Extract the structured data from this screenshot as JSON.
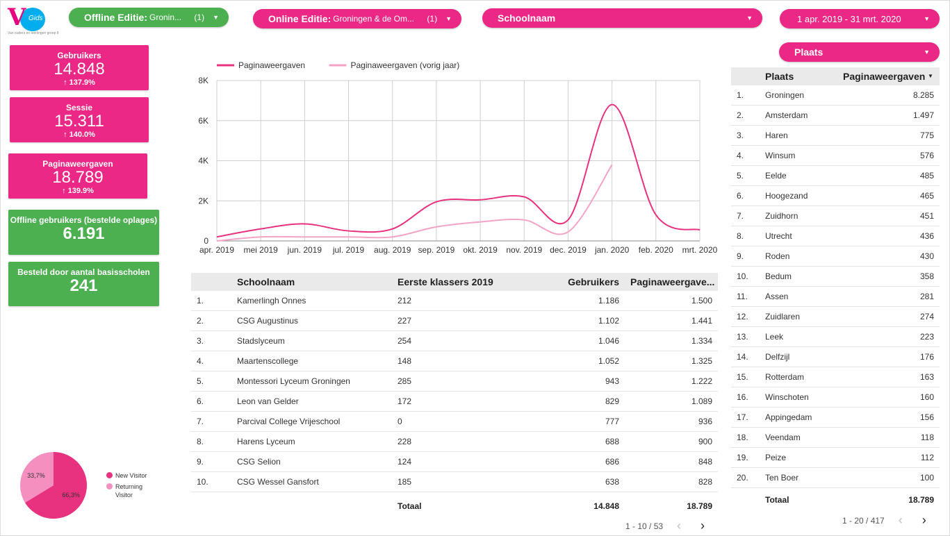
{
  "logo": {
    "letter": "V",
    "word": "Gids",
    "tagline": "Van ouders en leerlingen groep 8"
  },
  "filters": {
    "offline": {
      "label": "Offline Editie:",
      "value": "Gronin...",
      "count": "(1)"
    },
    "online": {
      "label": "Online Editie:",
      "value": "Groningen & de Om...",
      "count": "(1)"
    },
    "school": {
      "label": "Schoolnaam"
    },
    "date": {
      "label": "1 apr. 2019 - 31 mrt. 2020"
    },
    "plaats": {
      "label": "Plaats"
    }
  },
  "kpis": {
    "users": {
      "title": "Gebruikers",
      "value": "14.848",
      "change": "↑ 137.9%"
    },
    "sessions": {
      "title": "Sessie",
      "value": "15.311",
      "change": "↑ 140.0%"
    },
    "pageviews": {
      "title": "Paginaweergaven",
      "value": "18.789",
      "change": "↑ 139.9%"
    },
    "offline_users": {
      "title": "Offline gebruikers (bestelde oplages)",
      "value": "6.191"
    },
    "schools": {
      "title": "Besteld door aantal basisscholen",
      "value": "241"
    }
  },
  "chart_data": {
    "type": "line",
    "categories": [
      "apr. 2019",
      "mei 2019",
      "jun. 2019",
      "jul. 2019",
      "aug. 2019",
      "sep. 2019",
      "okt. 2019",
      "nov. 2019",
      "dec. 2019",
      "jan. 2020",
      "feb. 2020",
      "mrt. 2020"
    ],
    "series": [
      {
        "name": "Paginaweergaven",
        "color": "#e8317f",
        "values": [
          200,
          600,
          850,
          500,
          600,
          1950,
          2050,
          2200,
          1050,
          6800,
          1300,
          550
        ]
      },
      {
        "name": "Paginaweergaven (vorig jaar)",
        "color": "#f4a3c6",
        "values": [
          0,
          200,
          200,
          200,
          200,
          700,
          950,
          1050,
          450,
          3800,
          null,
          null
        ]
      }
    ],
    "yticks": [
      "0",
      "2K",
      "4K",
      "6K",
      "8K"
    ],
    "ylim": [
      0,
      8000
    ],
    "grid": true,
    "legend": "top-left"
  },
  "schools_table": {
    "headers": [
      "Schoolnaam",
      "Eerste klassers 2019",
      "Gebruikers",
      "Paginaweergave..."
    ],
    "rows": [
      [
        "1.",
        "Kamerlingh Onnes",
        "212",
        "1.186",
        "1.500"
      ],
      [
        "2.",
        "CSG Augustinus",
        "227",
        "1.102",
        "1.441"
      ],
      [
        "3.",
        "Stadslyceum",
        "254",
        "1.046",
        "1.334"
      ],
      [
        "4.",
        "Maartenscollege",
        "148",
        "1.052",
        "1.325"
      ],
      [
        "5.",
        "Montessori Lyceum Groningen",
        "285",
        "943",
        "1.222"
      ],
      [
        "6.",
        "Leon van Gelder",
        "172",
        "829",
        "1.089"
      ],
      [
        "7.",
        "Parcival College Vrijeschool",
        "0",
        "777",
        "936"
      ],
      [
        "8.",
        "Harens Lyceum",
        "228",
        "688",
        "900"
      ],
      [
        "9.",
        "CSG Selion",
        "124",
        "686",
        "848"
      ],
      [
        "10.",
        "CSG Wessel Gansfort",
        "185",
        "638",
        "828"
      ]
    ],
    "total_label": "Totaal",
    "total_users": "14.848",
    "total_pageviews": "18.789",
    "pager": "1 - 10 / 53"
  },
  "places_table": {
    "headers": [
      "Plaats",
      "Paginaweergaven"
    ],
    "sort_icon": "▼",
    "rows": [
      [
        "1.",
        "Groningen",
        "8.285"
      ],
      [
        "2.",
        "Amsterdam",
        "1.497"
      ],
      [
        "3.",
        "Haren",
        "775"
      ],
      [
        "4.",
        "Winsum",
        "576"
      ],
      [
        "5.",
        "Eelde",
        "485"
      ],
      [
        "6.",
        "Hoogezand",
        "465"
      ],
      [
        "7.",
        "Zuidhorn",
        "451"
      ],
      [
        "8.",
        "Utrecht",
        "436"
      ],
      [
        "9.",
        "Roden",
        "430"
      ],
      [
        "10.",
        "Bedum",
        "358"
      ],
      [
        "11.",
        "Assen",
        "281"
      ],
      [
        "12.",
        "Zuidlaren",
        "274"
      ],
      [
        "13.",
        "Leek",
        "223"
      ],
      [
        "14.",
        "Delfzijl",
        "176"
      ],
      [
        "15.",
        "Rotterdam",
        "163"
      ],
      [
        "16.",
        "Winschoten",
        "160"
      ],
      [
        "17.",
        "Appingedam",
        "156"
      ],
      [
        "18.",
        "Veendam",
        "118"
      ],
      [
        "19.",
        "Peize",
        "112"
      ],
      [
        "20.",
        "Ten Boer",
        "100"
      ]
    ],
    "total_label": "Totaal",
    "total_pageviews": "18.789",
    "pager": "1 - 20 / 417"
  },
  "visitor_pie": {
    "slices": [
      {
        "label": "New Visitor",
        "value": 66.3,
        "display": "66,3%",
        "color": "#e8317f"
      },
      {
        "label": "Returning Visitor",
        "value": 33.7,
        "display": "33,7%",
        "color": "#f48fc0"
      }
    ]
  }
}
